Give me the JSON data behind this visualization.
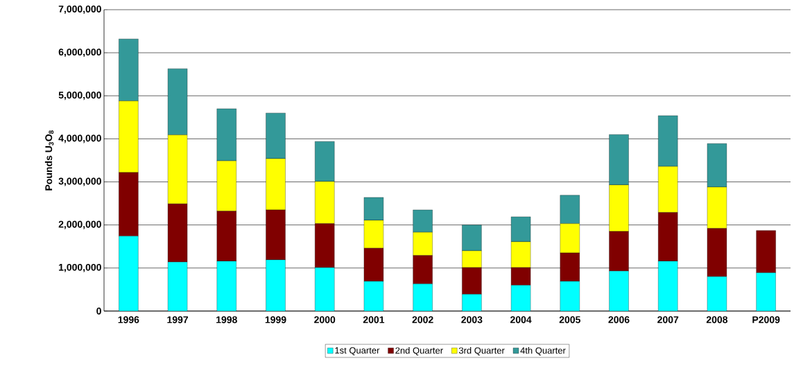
{
  "chart_data": {
    "type": "bar",
    "stacked": true,
    "ylabel": "Pounds U$_{3}$O$_{8}$",
    "categories": [
      "1996",
      "1997",
      "1998",
      "1999",
      "2000",
      "2001",
      "2002",
      "2003",
      "2004",
      "2005",
      "2006",
      "2007",
      "2008",
      "P2009"
    ],
    "series": [
      {
        "name": "1st Quarter",
        "color": "#00ffff",
        "values": [
          1740000,
          1140000,
          1160000,
          1190000,
          1010000,
          690000,
          630000,
          390000,
          600000,
          690000,
          930000,
          1160000,
          800000,
          890000
        ]
      },
      {
        "name": "2nd Quarter",
        "color": "#800000",
        "values": [
          1480000,
          1350000,
          1160000,
          1160000,
          1020000,
          770000,
          660000,
          620000,
          410000,
          660000,
          920000,
          1130000,
          1120000,
          980000
        ]
      },
      {
        "name": "3rd Quarter",
        "color": "#ffff00",
        "values": [
          1660000,
          1600000,
          1170000,
          1190000,
          980000,
          650000,
          540000,
          390000,
          600000,
          680000,
          1080000,
          1070000,
          960000,
          null
        ]
      },
      {
        "name": "4th Quarter",
        "color": "#339999",
        "values": [
          1440000,
          1540000,
          1210000,
          1060000,
          930000,
          530000,
          520000,
          600000,
          580000,
          660000,
          1170000,
          1180000,
          1010000,
          null
        ]
      }
    ],
    "ylim": [
      0,
      7000000
    ],
    "yticks": [
      {
        "value": 0,
        "label": "0"
      },
      {
        "value": 1000000,
        "label": "1,000,000"
      },
      {
        "value": 2000000,
        "label": "2,000,000"
      },
      {
        "value": 3000000,
        "label": "3,000,000"
      },
      {
        "value": 4000000,
        "label": "4,000,000"
      },
      {
        "value": 5000000,
        "label": "5,000,000"
      },
      {
        "value": 6000000,
        "label": "6,000,000"
      },
      {
        "value": 7000000,
        "label": "7,000,000"
      }
    ],
    "grid": "y",
    "legend": "bottom"
  }
}
